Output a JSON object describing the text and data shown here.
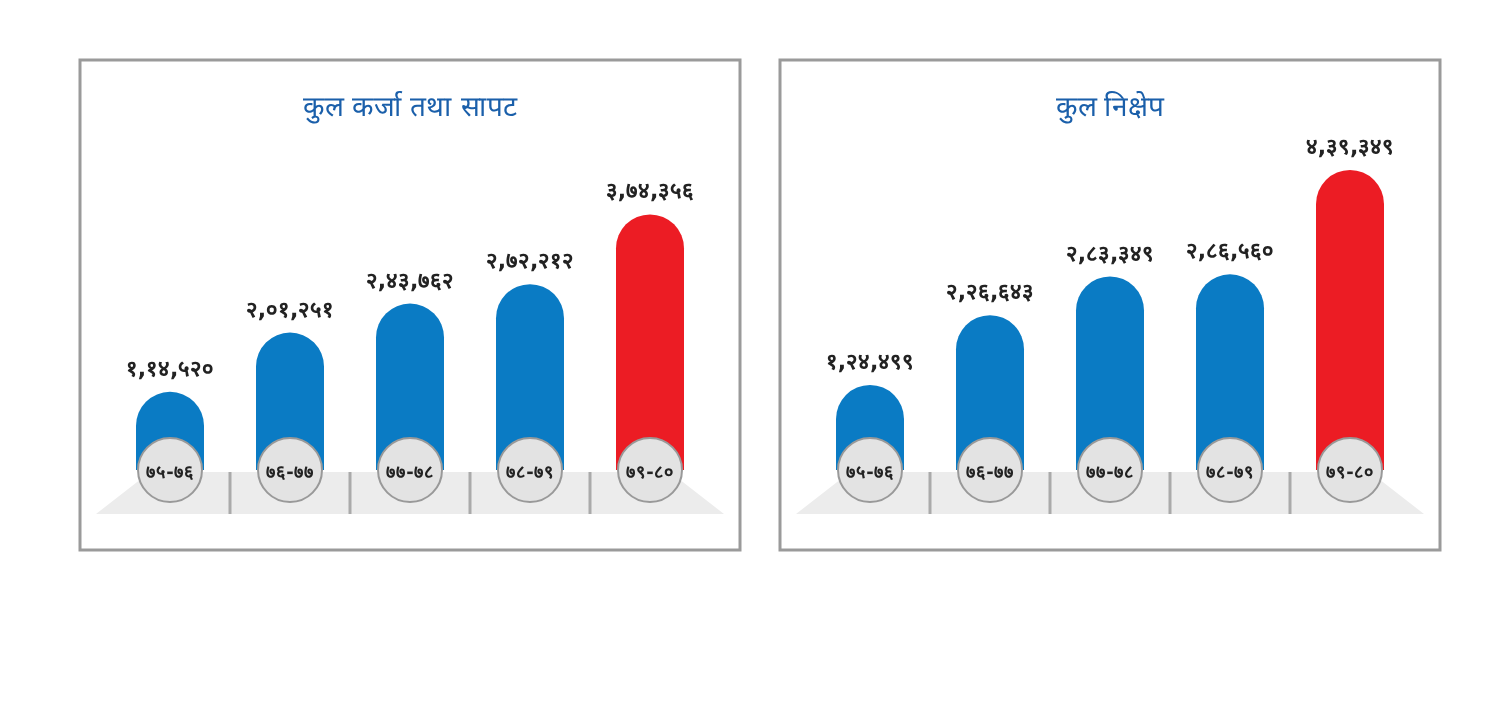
{
  "chart_data": [
    {
      "type": "bar",
      "title": "कुल कर्जा तथा सापट",
      "categories": [
        "७५-७६",
        "७६-७७",
        "७७-७८",
        "७८-७९",
        "७९-८०"
      ],
      "values": [
        114520,
        201251,
        243762,
        272212,
        374356
      ],
      "colors": [
        "#0a7bc4",
        "#0a7bc4",
        "#0a7bc4",
        "#0a7bc4",
        "#ec1c24"
      ],
      "value_labels": [
        "१,१४,५२०",
        "२,०१,२५१",
        "२,४३,७६२",
        "२,७२,२१२",
        "३,७४,३५६"
      ]
    },
    {
      "type": "bar",
      "title": "कुल निक्षेप",
      "categories": [
        "७५-७६",
        "७६-७७",
        "७७-७८",
        "७८-७९",
        "७९-८०"
      ],
      "values": [
        124499,
        226643,
        283349,
        286560,
        439349
      ],
      "colors": [
        "#0a7bc4",
        "#0a7bc4",
        "#0a7bc4",
        "#0a7bc4",
        "#ec1c24"
      ],
      "value_labels": [
        "१,२४,४९९",
        "२,२६,६४३",
        "२,८३,३४९",
        "२,८६,५६०",
        "४,३९,३४९"
      ]
    }
  ]
}
